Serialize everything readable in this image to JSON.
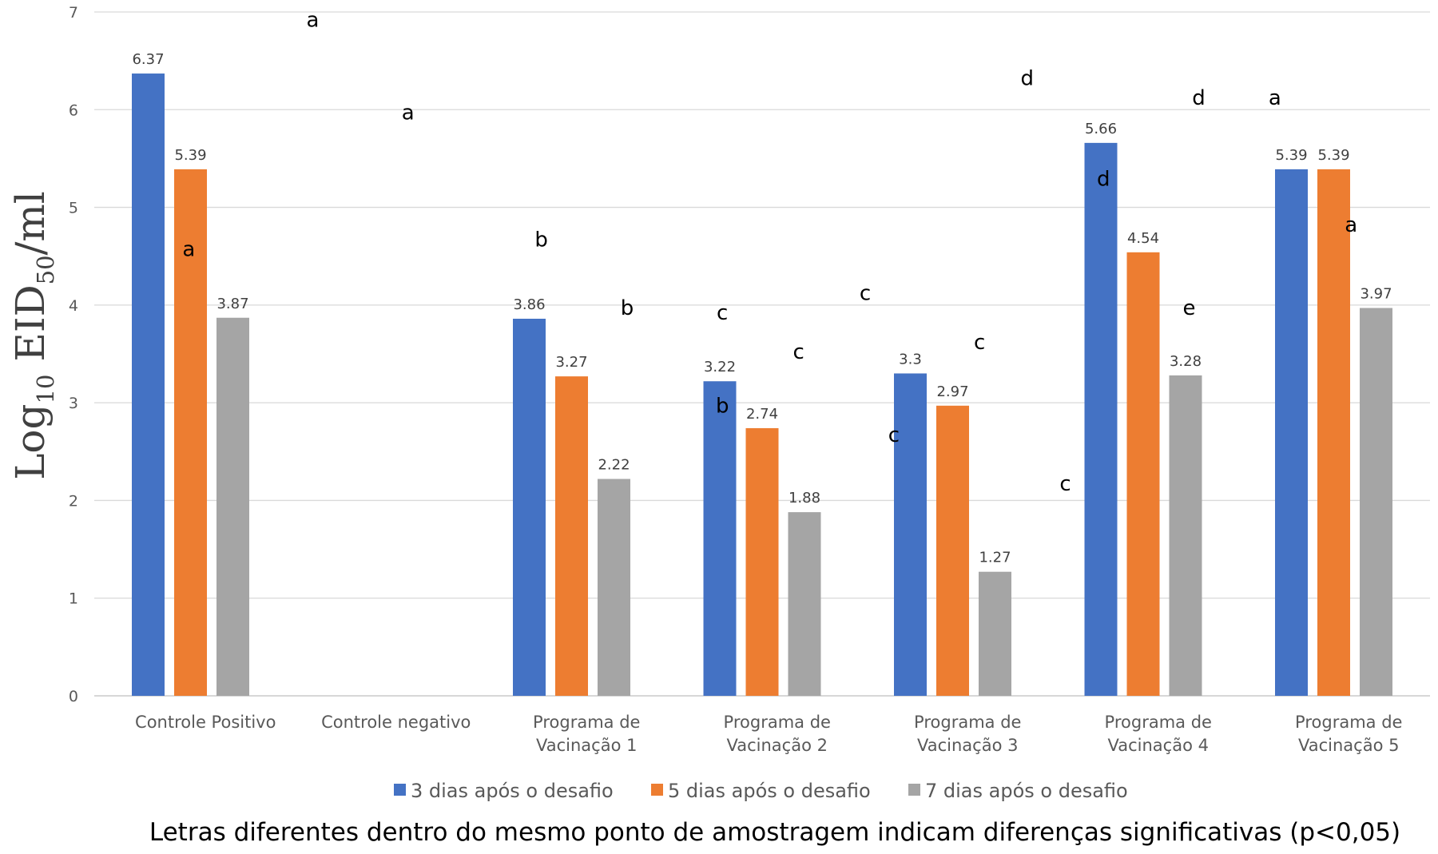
{
  "chart_data": {
    "type": "bar",
    "title": "",
    "ylabel": {
      "base": "Log",
      "base_sub": "10",
      "unit": " EID",
      "unit_sub": "50",
      "suffix": "/ml"
    },
    "xlabel": "",
    "ylim": [
      0,
      7
    ],
    "yticks": [
      "0",
      "1",
      "2",
      "3",
      "4",
      "5",
      "6",
      "7"
    ],
    "grid": true,
    "legend_position": "bottom",
    "categories": [
      [
        "Controle Positivo"
      ],
      [
        "Controle negativo"
      ],
      [
        "Programa de",
        "Vacinação 1"
      ],
      [
        "Programa de",
        "Vacinação 2"
      ],
      [
        "Programa de",
        "Vacinação 3"
      ],
      [
        "Programa de",
        "Vacinação 4"
      ],
      [
        "Programa de",
        "Vacinação 5"
      ]
    ],
    "series": [
      {
        "name": "3 dias após o desafio",
        "color": "#4472C4",
        "values": [
          6.37,
          null,
          3.86,
          3.22,
          3.3,
          5.66,
          5.39
        ],
        "labels": [
          "6.37",
          "",
          "3.86",
          "3.22",
          "3.3",
          "5.66",
          "5.39"
        ]
      },
      {
        "name": "5 dias após o desafio",
        "color": "#ED7D31",
        "values": [
          5.39,
          null,
          3.27,
          2.74,
          2.97,
          4.54,
          5.39
        ],
        "labels": [
          "5.39",
          "",
          "3.27",
          "2.74",
          "2.97",
          "4.54",
          "5.39"
        ]
      },
      {
        "name": "7 dias após o desafio",
        "color": "#A5A5A5",
        "values": [
          3.87,
          null,
          2.22,
          1.88,
          1.27,
          3.28,
          3.97
        ],
        "labels": [
          "3.87",
          "",
          "2.22",
          "1.88",
          "1.27",
          "3.28",
          "3.97"
        ]
      }
    ],
    "significance_letters": [
      {
        "letter": "a",
        "category": 0,
        "offset": 1.05,
        "value": 6.85
      },
      {
        "letter": "a",
        "category": 0,
        "offset": 1.55,
        "value": 5.9
      },
      {
        "letter": "a",
        "category": 1,
        "offset": -0.6,
        "value": 4.5
      },
      {
        "letter": "b",
        "category": 2,
        "offset": 0.25,
        "value": 4.6
      },
      {
        "letter": "b",
        "category": 2,
        "offset": 0.7,
        "value": 3.9
      },
      {
        "letter": "b",
        "category": 2,
        "offset": 1.2,
        "value": 2.9
      },
      {
        "letter": "c",
        "category": 3,
        "offset": 0.2,
        "value": 3.85
      },
      {
        "letter": "c",
        "category": 3,
        "offset": 0.6,
        "value": 3.45
      },
      {
        "letter": "c",
        "category": 3,
        "offset": 1.1,
        "value": 2.6
      },
      {
        "letter": "c",
        "category": 4,
        "offset": -0.05,
        "value": 4.05
      },
      {
        "letter": "c",
        "category": 4,
        "offset": 0.55,
        "value": 3.55
      },
      {
        "letter": "c",
        "category": 4,
        "offset": 1.0,
        "value": 2.1
      },
      {
        "letter": "d",
        "category": 5,
        "offset": -0.2,
        "value": 6.25
      },
      {
        "letter": "d",
        "category": 5,
        "offset": 0.2,
        "value": 5.22
      },
      {
        "letter": "e",
        "category": 5,
        "offset": 0.65,
        "value": 3.9
      },
      {
        "letter": "d",
        "category": 6,
        "offset": -0.3,
        "value": 6.05
      },
      {
        "letter": "a",
        "category": 6,
        "offset": 0.1,
        "value": 6.05
      },
      {
        "letter": "a",
        "category": 6,
        "offset": 0.5,
        "value": 4.75
      }
    ]
  },
  "footnote": "Letras diferentes dentro do mesmo ponto de amostragem indicam diferenças significativas (p<0,05)"
}
